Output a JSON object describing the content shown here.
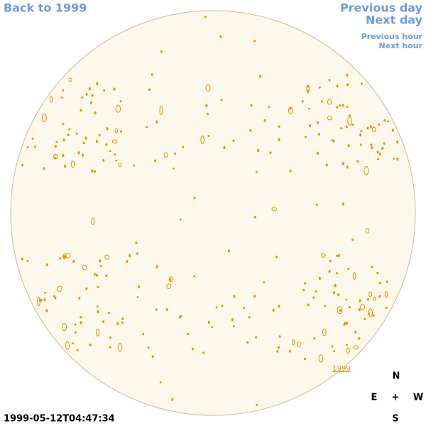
{
  "nav": {
    "back": "Back to 1999",
    "previous_day": "Previous day",
    "next_day": "Next day",
    "previous_hour": "Previous hour",
    "next_hour": "Next hour"
  },
  "year_link": "1999",
  "timestamp": "1999-05-12T04:47:34",
  "compass": {
    "north": "N",
    "east": "E",
    "center": "+",
    "west": "W",
    "south": "S"
  }
}
